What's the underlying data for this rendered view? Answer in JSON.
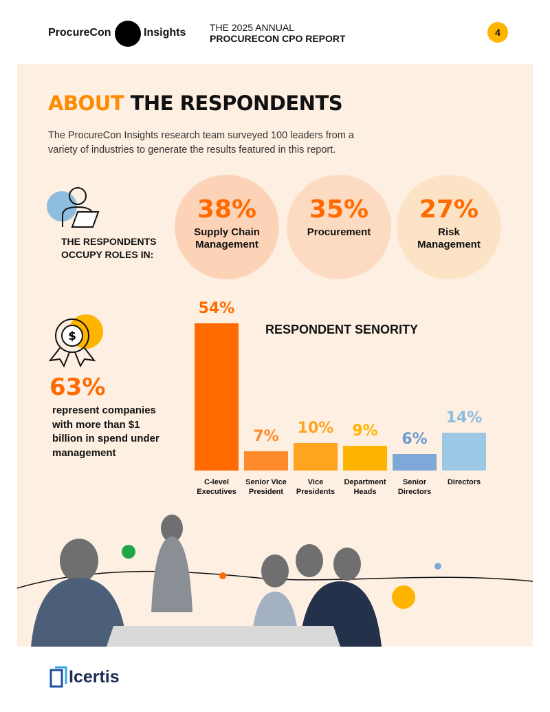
{
  "header": {
    "brand_left": "ProcureCon",
    "brand_right": "Insights",
    "title_line1": "THE 2025 ANNUAL",
    "title_line2": "PROCURECON CPO REPORT",
    "page_number": "4"
  },
  "heading": {
    "accent": "ABOUT",
    "rest": "THE RESPONDENTS"
  },
  "intro": "The ProcureCon Insights research team surveyed 100 leaders from a variety of industries to generate the results featured in this report.",
  "roles": {
    "label": "THE RESPONDENTS OCCUPY ROLES IN:",
    "items": [
      {
        "percent": "38%",
        "name": "Supply Chain Management"
      },
      {
        "percent": "35%",
        "name": "Procurement"
      },
      {
        "percent": "27%",
        "name": "Risk Management"
      }
    ]
  },
  "spend": {
    "percent": "63%",
    "text": "represent companies with more than $1 billion in spend under management"
  },
  "chart_data": {
    "type": "bar",
    "title": "RESPONDENT SENORITY",
    "categories": [
      "C-level Executives",
      "Senior Vice President",
      "Vice Presidents",
      "Department Heads",
      "Senior Directors",
      "Directors"
    ],
    "values": [
      54,
      7,
      10,
      9,
      6,
      14
    ],
    "value_labels": [
      "54%",
      "7%",
      "10%",
      "9%",
      "6%",
      "14%"
    ],
    "colors": [
      "#ff6b00",
      "#ff8a2b",
      "#ffa41f",
      "#ffb400",
      "#7ea8d8",
      "#9cc8e6"
    ],
    "label_colors": [
      "#ff6b00",
      "#ff8a2b",
      "#ffa41f",
      "#ffb400",
      "#6c9bd2",
      "#8cbde0"
    ]
  },
  "footer": {
    "logo": "Icertis"
  }
}
